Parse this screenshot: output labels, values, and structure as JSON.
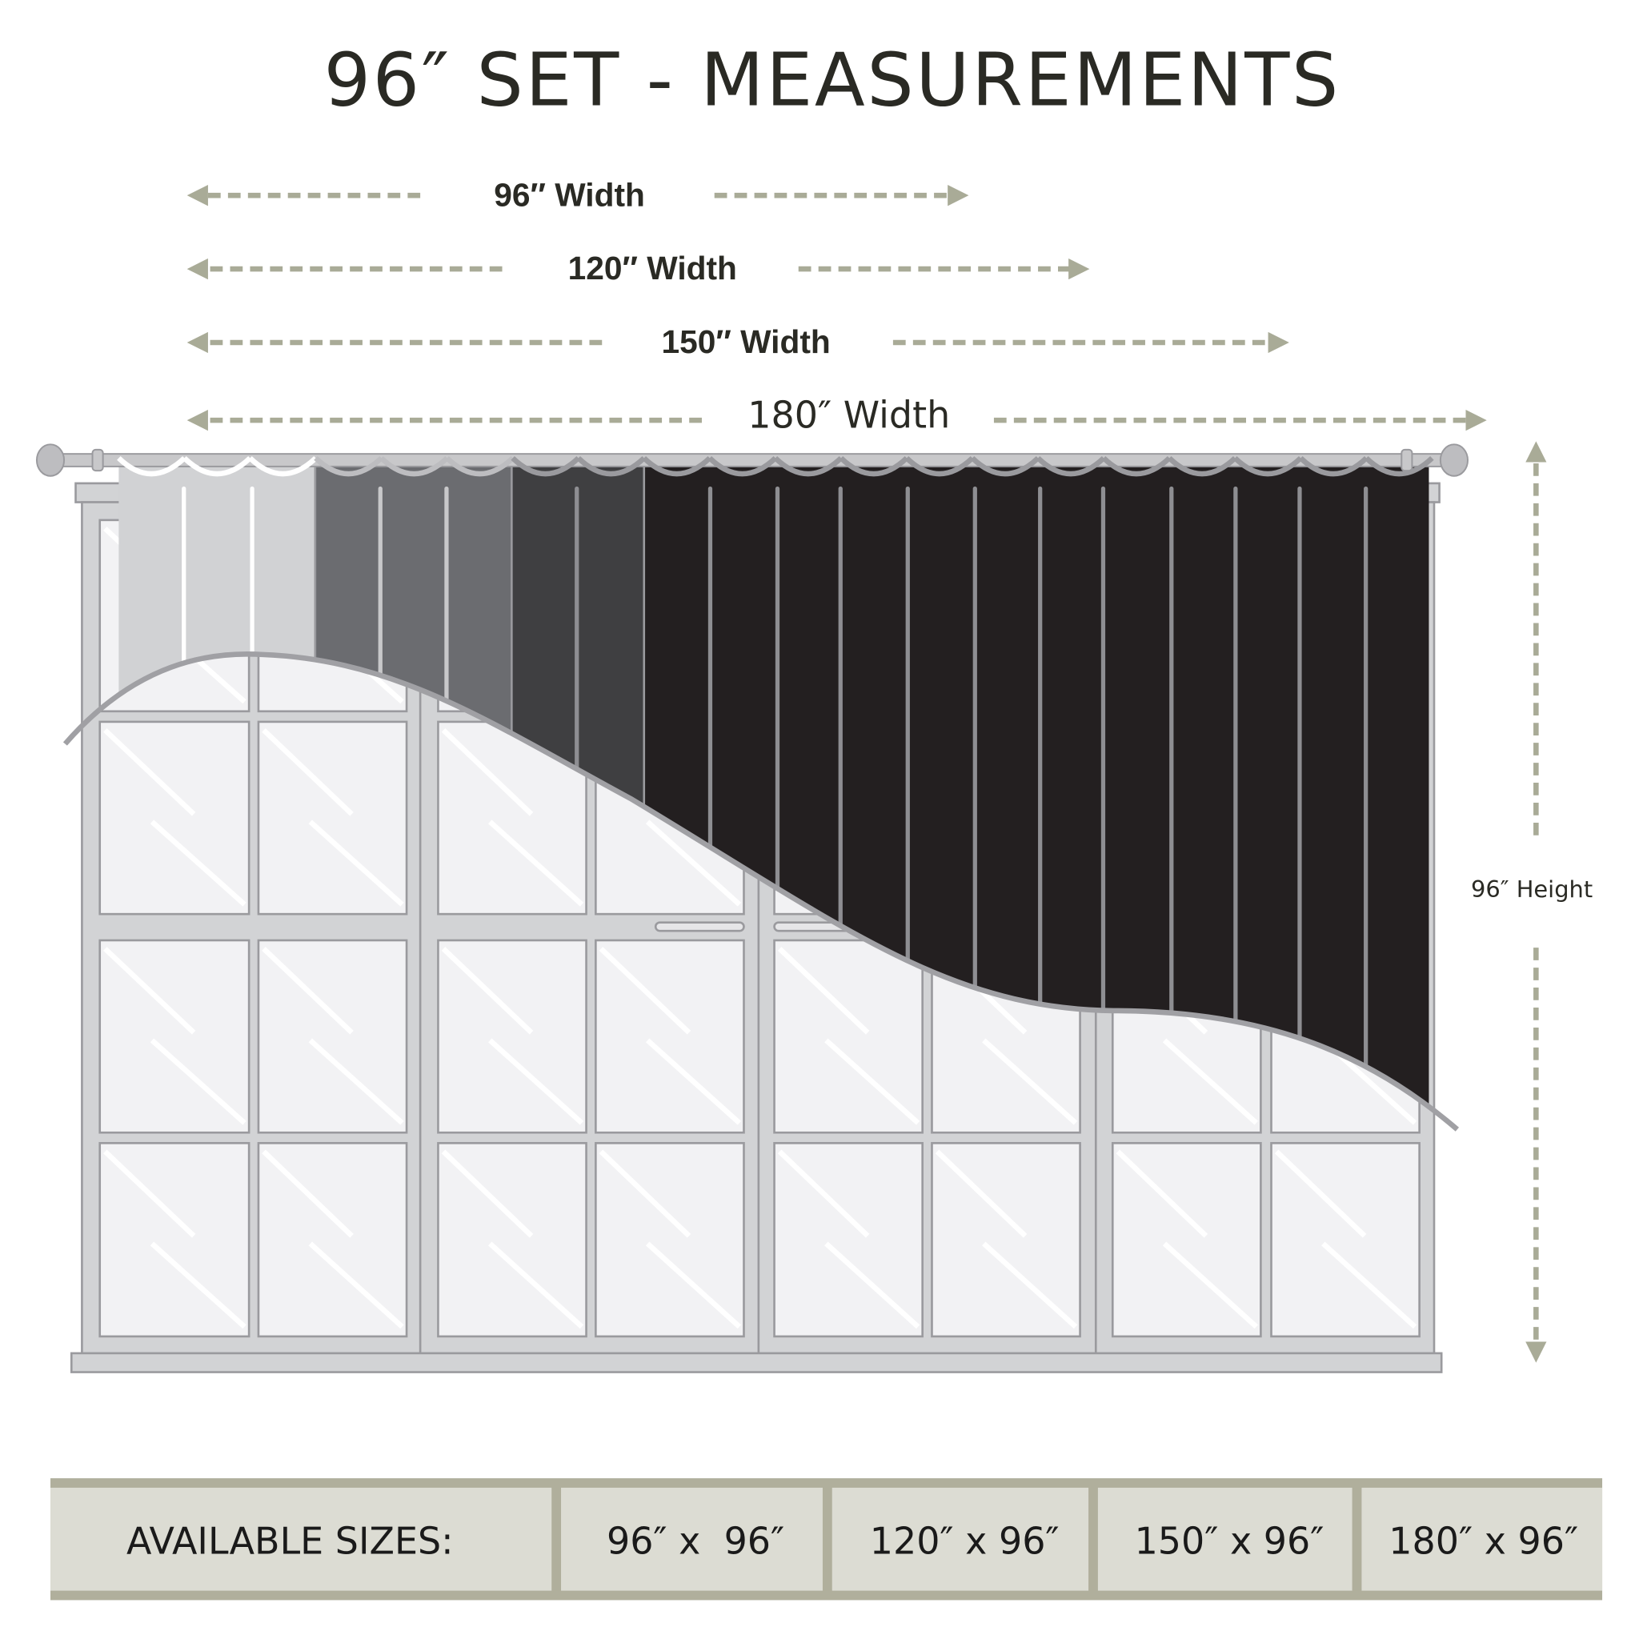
{
  "title": "96″ SET - MEASUREMENTS",
  "width_labels": [
    "96″ Width",
    "120″ Width",
    "150″ Width",
    "180″ Width"
  ],
  "height_label": "96″ Height",
  "sizes_table": {
    "heading": "AVAILABLE SIZES:",
    "sizes": [
      "96″ x  96″",
      "120″ x 96″",
      "150″ x 96″",
      "180″ x 96″"
    ]
  },
  "colors": {
    "arrow": "#a9ab97",
    "table_band": "#b0af9c",
    "table_cell": "#dcdcd3",
    "curtain_light": "#d1d2d4",
    "curtain_mid": "#6b6c70",
    "curtain_dark": "#3f3f41",
    "curtain_black": "#231f20"
  }
}
